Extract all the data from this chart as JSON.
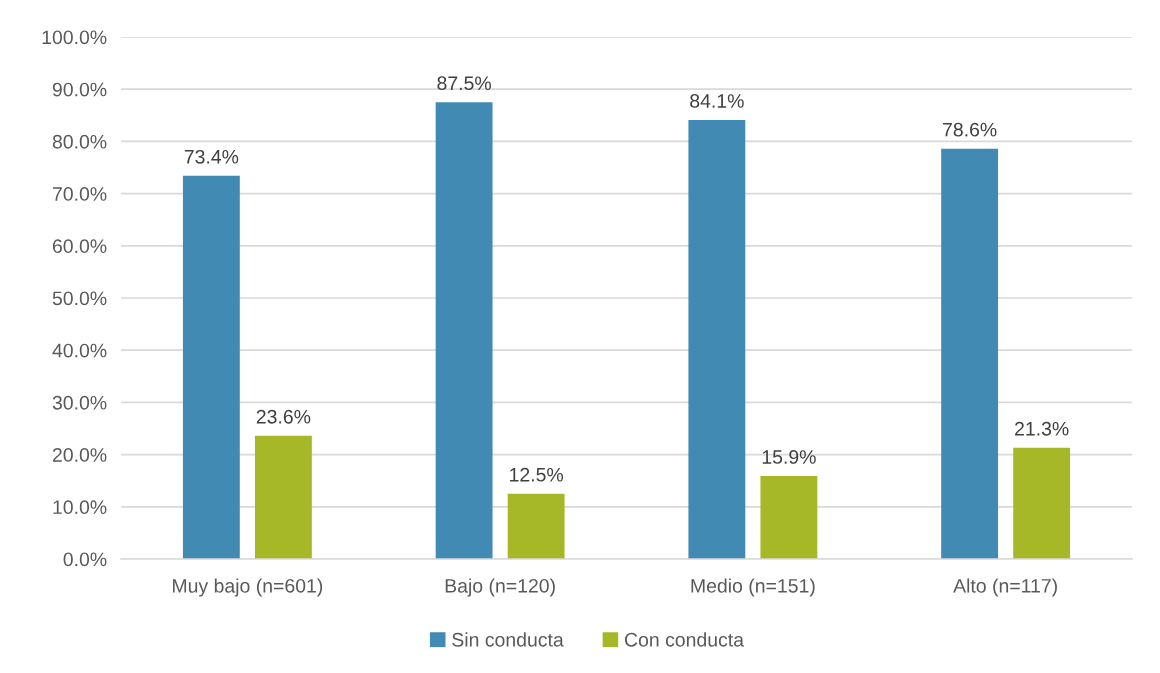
{
  "chart_data": {
    "type": "bar",
    "categories": [
      "Muy bajo (n=601)",
      "Bajo (n=120)",
      "Medio (n=151)",
      "Alto (n=117)"
    ],
    "series": [
      {
        "name": "Sin conducta",
        "color": "#418ab3",
        "values": [
          73.4,
          87.5,
          84.1,
          78.6
        ],
        "value_labels": [
          "73.4%",
          "87.5%",
          "84.1%",
          "78.6%"
        ]
      },
      {
        "name": "Con conducta",
        "color": "#a6b727",
        "values": [
          23.6,
          12.5,
          15.9,
          21.3
        ],
        "value_labels": [
          "23.6%",
          "12.5%",
          "15.9%",
          "21.3%"
        ]
      }
    ],
    "ylim": [
      0,
      100
    ],
    "yticks": [
      {
        "value": 0,
        "label": "0.0%"
      },
      {
        "value": 10,
        "label": "10.0%"
      },
      {
        "value": 20,
        "label": "20.0%"
      },
      {
        "value": 30,
        "label": "30.0%"
      },
      {
        "value": 40,
        "label": "40.0%"
      },
      {
        "value": 50,
        "label": "50.0%"
      },
      {
        "value": 60,
        "label": "60.0%"
      },
      {
        "value": 70,
        "label": "70.0%"
      },
      {
        "value": 80,
        "label": "80.0%"
      },
      {
        "value": 90,
        "label": "90.0%"
      },
      {
        "value": 100,
        "label": "100.0%"
      }
    ],
    "grid": "y",
    "legend": "bottom"
  }
}
